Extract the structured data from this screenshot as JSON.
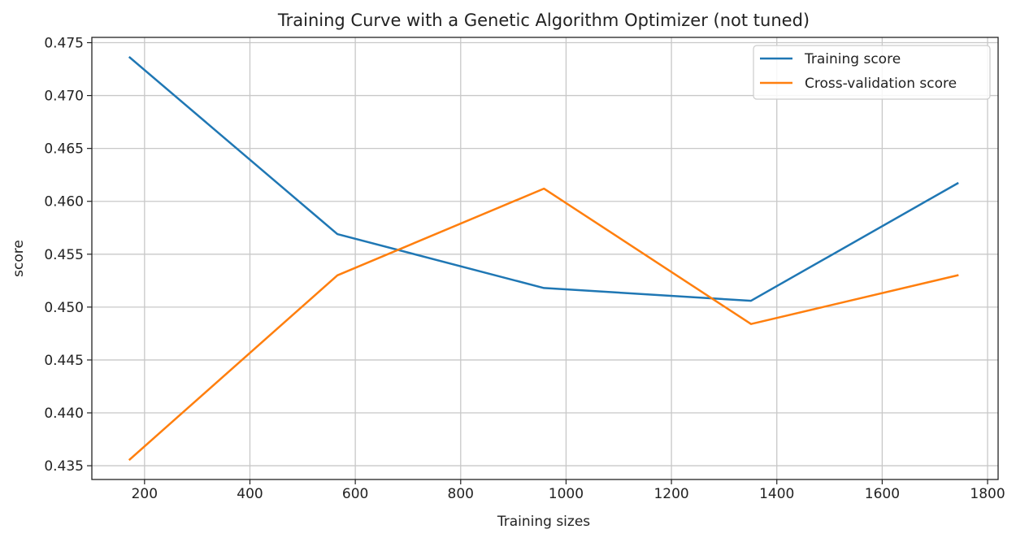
{
  "chart_data": {
    "type": "line",
    "title": "Training Curve with a Genetic Algorithm Optimizer (not tuned)",
    "xlabel": "Training sizes",
    "ylabel": "score",
    "xlim": [
      100,
      1820
    ],
    "ylim": [
      0.4337,
      0.4755
    ],
    "xticks": [
      200,
      400,
      600,
      800,
      1000,
      1200,
      1400,
      1600,
      1800
    ],
    "xtick_labels": [
      "200",
      "400",
      "600",
      "800",
      "1000",
      "1200",
      "1400",
      "1600",
      "1800"
    ],
    "yticks": [
      0.435,
      0.44,
      0.445,
      0.45,
      0.455,
      0.46,
      0.465,
      0.47,
      0.475
    ],
    "ytick_labels": [
      "0.435",
      "0.440",
      "0.445",
      "0.450",
      "0.455",
      "0.460",
      "0.465",
      "0.470",
      "0.475"
    ],
    "grid": true,
    "legend_position": "top-right",
    "x": [
      172,
      566,
      958,
      1351,
      1743
    ],
    "series": [
      {
        "name": "Training score",
        "color": "#1f77b4",
        "values": [
          0.4736,
          0.4569,
          0.4518,
          0.4506,
          0.4617
        ]
      },
      {
        "name": "Cross-validation score",
        "color": "#ff7f0e",
        "values": [
          0.4356,
          0.453,
          0.4612,
          0.4484,
          0.453
        ]
      }
    ]
  }
}
